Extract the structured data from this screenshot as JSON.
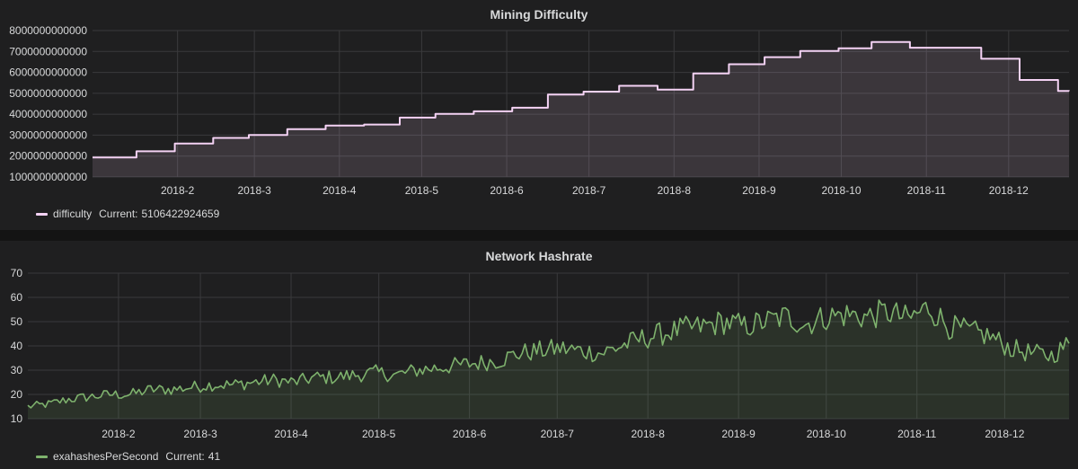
{
  "chart_data": [
    {
      "type": "area",
      "title": "Mining Difficulty",
      "x_ticks": [
        "2018-2",
        "2018-3",
        "2018-4",
        "2018-5",
        "2018-6",
        "2018-7",
        "2018-8",
        "2018-9",
        "2018-10",
        "2018-11",
        "2018-12"
      ],
      "y_ticks": [
        "1000000000000",
        "2000000000000",
        "3000000000000",
        "4000000000000",
        "5000000000000",
        "6000000000000",
        "7000000000000",
        "8000000000000"
      ],
      "ylim": [
        1000000000000,
        8000000000000
      ],
      "xlim": [
        "2018-01-01",
        "2018-12-23"
      ],
      "grid": true,
      "legend_position": "bottom-left",
      "series": [
        {
          "name": "difficulty",
          "color": "#f4d2f4",
          "current_label": "Current:",
          "current_value": "5106422924659",
          "x": [
            "2018-01-01",
            "2018-01-04",
            "2018-01-17",
            "2018-01-31",
            "2018-02-14",
            "2018-02-27",
            "2018-03-13",
            "2018-03-27",
            "2018-04-10",
            "2018-04-23",
            "2018-05-06",
            "2018-05-20",
            "2018-06-03",
            "2018-06-16",
            "2018-06-29",
            "2018-07-12",
            "2018-07-26",
            "2018-08-08",
            "2018-08-21",
            "2018-09-03",
            "2018-09-16",
            "2018-09-30",
            "2018-10-12",
            "2018-10-26",
            "2018-11-08",
            "2018-11-21",
            "2018-12-05",
            "2018-12-19",
            "2018-12-23"
          ],
          "y": [
            1930000000000,
            1930000000000,
            2230000000000,
            2600000000000,
            2870000000000,
            3010000000000,
            3290000000000,
            3460000000000,
            3510000000000,
            3840000000000,
            4020000000000,
            4140000000000,
            4310000000000,
            4940000000000,
            5080000000000,
            5360000000000,
            5180000000000,
            5950000000000,
            6390000000000,
            6730000000000,
            7020000000000,
            7150000000000,
            7450000000000,
            7180000000000,
            7180000000000,
            6650000000000,
            5640000000000,
            5110000000000,
            5106422924659
          ]
        }
      ]
    },
    {
      "type": "area",
      "title": "Network Hashrate",
      "x_ticks": [
        "2018-2",
        "2018-3",
        "2018-4",
        "2018-5",
        "2018-6",
        "2018-7",
        "2018-8",
        "2018-9",
        "2018-10",
        "2018-11",
        "2018-12"
      ],
      "y_ticks": [
        "10",
        "20",
        "30",
        "40",
        "50",
        "60",
        "70"
      ],
      "ylim": [
        10,
        70
      ],
      "xlim": [
        "2018-01-01",
        "2018-12-23"
      ],
      "grid": true,
      "legend_position": "bottom-left",
      "series": [
        {
          "name": "exahashesPerSecond",
          "color": "#7eb26d",
          "current_label": "Current:",
          "current_value": "41",
          "x": [
            "2018-01-01",
            "2018-01-08",
            "2018-01-15",
            "2018-01-22",
            "2018-01-29",
            "2018-02-05",
            "2018-02-12",
            "2018-02-19",
            "2018-02-26",
            "2018-03-05",
            "2018-03-12",
            "2018-03-19",
            "2018-03-26",
            "2018-04-02",
            "2018-04-09",
            "2018-04-16",
            "2018-04-23",
            "2018-04-30",
            "2018-05-07",
            "2018-05-14",
            "2018-05-21",
            "2018-05-28",
            "2018-06-04",
            "2018-06-11",
            "2018-06-18",
            "2018-06-25",
            "2018-07-02",
            "2018-07-09",
            "2018-07-16",
            "2018-07-23",
            "2018-07-30",
            "2018-08-06",
            "2018-08-13",
            "2018-08-20",
            "2018-08-27",
            "2018-09-03",
            "2018-09-10",
            "2018-09-17",
            "2018-09-24",
            "2018-10-01",
            "2018-10-08",
            "2018-10-15",
            "2018-10-22",
            "2018-10-29",
            "2018-11-05",
            "2018-11-12",
            "2018-11-19",
            "2018-11-26",
            "2018-12-03",
            "2018-12-10",
            "2018-12-17",
            "2018-12-23"
          ],
          "y": [
            15,
            16,
            18,
            19,
            20,
            20,
            22,
            22,
            23,
            24,
            24,
            25,
            26,
            25,
            27,
            27,
            28,
            29,
            28,
            30,
            31,
            32,
            33,
            34,
            37,
            38,
            39,
            38,
            37,
            40,
            43,
            45,
            47,
            48,
            50,
            48,
            50,
            52,
            49,
            52,
            53,
            52,
            54,
            51,
            56,
            48,
            46,
            44,
            39,
            37,
            36,
            41
          ]
        }
      ]
    }
  ]
}
